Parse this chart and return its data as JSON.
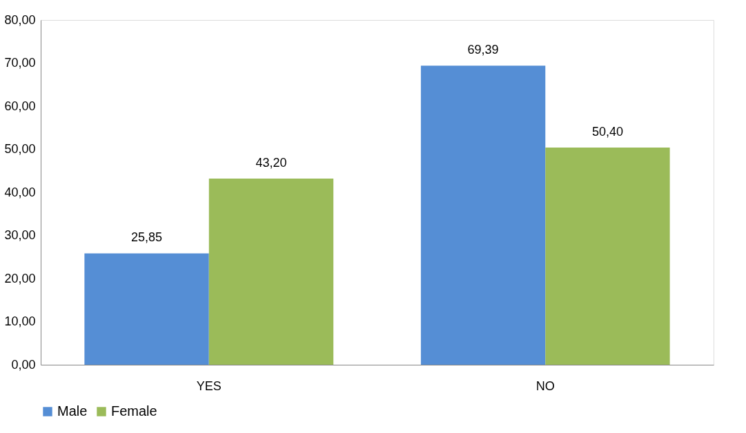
{
  "chart_data": {
    "type": "bar",
    "categories": [
      "YES",
      "NO"
    ],
    "series": [
      {
        "name": "Male",
        "color": "#558ed5",
        "values": [
          25.85,
          69.39
        ],
        "value_labels": [
          "25,85",
          "69,39"
        ]
      },
      {
        "name": "Female",
        "color": "#9bbb59",
        "values": [
          43.2,
          50.4
        ],
        "value_labels": [
          "43,20",
          "50,40"
        ]
      }
    ],
    "ylim": [
      0,
      80
    ],
    "yticks": [
      {
        "value": 0,
        "label": "0,00"
      },
      {
        "value": 10,
        "label": "10,00"
      },
      {
        "value": 20,
        "label": "20,00"
      },
      {
        "value": 30,
        "label": "30,00"
      },
      {
        "value": 40,
        "label": "40,00"
      },
      {
        "value": 50,
        "label": "50,00"
      },
      {
        "value": 60,
        "label": "60,00"
      },
      {
        "value": 70,
        "label": "70,00"
      },
      {
        "value": 80,
        "label": "80,00"
      }
    ],
    "grid": false,
    "legend": "bottom"
  }
}
